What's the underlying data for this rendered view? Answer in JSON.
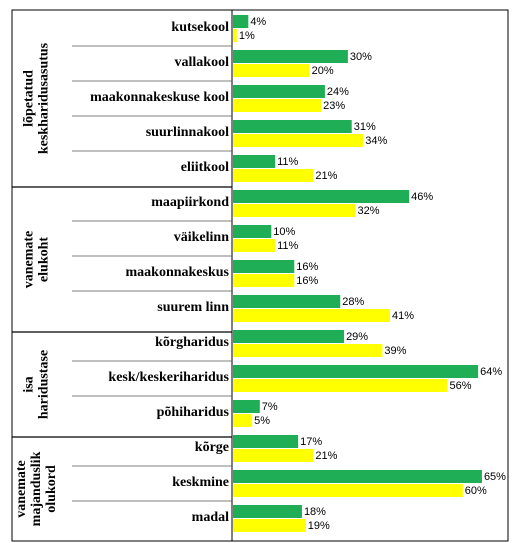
{
  "chart_data": {
    "type": "bar",
    "orientation": "horizontal",
    "value_suffix": "%",
    "xlim": [
      0,
      100
    ],
    "colors": {
      "series_1": "#1fae55",
      "series_2": "#ffff00"
    },
    "groups": [
      {
        "label_lines": [
          "lõpetatud",
          "keskharidusasutus"
        ],
        "categories": [
          "kutsekool",
          "vallakool",
          "maakonnakeskuse kool",
          "suurlinnakool",
          "eliitkool"
        ],
        "values_1": [
          4,
          30,
          24,
          31,
          11
        ],
        "values_2": [
          1,
          20,
          23,
          34,
          21
        ]
      },
      {
        "label_lines": [
          "vanemate",
          "elukoht"
        ],
        "categories": [
          "maapiirkond",
          "väikelinn",
          "maakonnakeskus",
          "suurem linn"
        ],
        "values_1": [
          46,
          10,
          16,
          28
        ],
        "values_2": [
          32,
          11,
          16,
          41
        ]
      },
      {
        "label_lines": [
          "isa",
          "haridustase"
        ],
        "categories": [
          "kõrgharidus",
          "kesk/keskeriharidus",
          "põhiharidus"
        ],
        "values_1": [
          29,
          64,
          7
        ],
        "values_2": [
          39,
          56,
          5
        ]
      },
      {
        "label_lines": [
          "vanemate",
          "majanduslik",
          "olukord"
        ],
        "categories": [
          "kõrge",
          "keskmine",
          "madal"
        ],
        "values_1": [
          17,
          65,
          18
        ],
        "values_2": [
          21,
          60,
          19
        ]
      }
    ]
  }
}
